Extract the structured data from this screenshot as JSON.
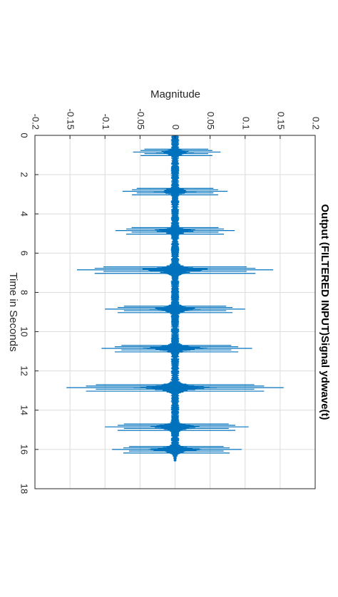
{
  "chart_data": {
    "type": "line",
    "title": "Output (FILTERED INPUT)Signal ydwave(t)",
    "xlabel": "Time in Seconds",
    "ylabel": "Magnitude",
    "xlim": [
      0,
      18
    ],
    "ylim": [
      -0.2,
      0.2
    ],
    "xticks": [
      "0",
      "2",
      "4",
      "6",
      "8",
      "10",
      "12",
      "14",
      "16",
      "18"
    ],
    "yticks": [
      "-0.2",
      "-0.15",
      "-0.1",
      "-0.05",
      "0",
      "0.05",
      "0.1",
      "0.15",
      "0.2"
    ],
    "grid": true,
    "orientation": "rotated 90 degrees clockwise",
    "series_color": "#0072BD",
    "signal_end": 16.2,
    "baseline_noise": 0.004,
    "bursts": [
      {
        "t": 0.85,
        "min": -0.06,
        "max": 0.065
      },
      {
        "t": 2.85,
        "min": -0.075,
        "max": 0.075
      },
      {
        "t": 4.85,
        "min": -0.085,
        "max": 0.085
      },
      {
        "t": 6.85,
        "min": -0.14,
        "max": 0.14
      },
      {
        "t": 8.85,
        "min": -0.1,
        "max": 0.1
      },
      {
        "t": 10.85,
        "min": -0.105,
        "max": 0.11
      },
      {
        "t": 12.85,
        "min": -0.155,
        "max": 0.155
      },
      {
        "t": 14.85,
        "min": -0.1,
        "max": 0.105
      },
      {
        "t": 16.0,
        "min": -0.09,
        "max": 0.095
      }
    ]
  }
}
